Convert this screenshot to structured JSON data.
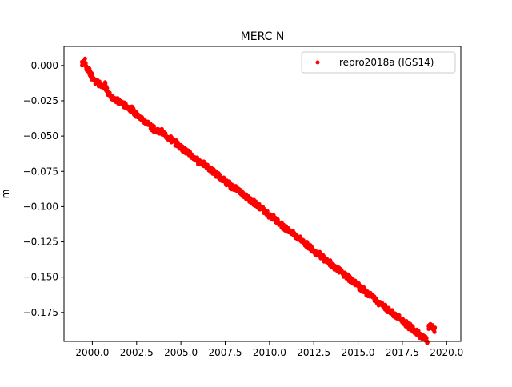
{
  "chart_data": {
    "type": "scatter",
    "title": "MERC N",
    "xlabel": "",
    "ylabel": "m",
    "xlim": [
      1998.4,
      2020.8
    ],
    "ylim": [
      -0.1955,
      0.0135
    ],
    "x_ticks": [
      2000.0,
      2002.5,
      2005.0,
      2007.5,
      2010.0,
      2012.5,
      2015.0,
      2017.5,
      2020.0
    ],
    "x_tick_labels": [
      "2000.0",
      "2002.5",
      "2005.0",
      "2007.5",
      "2010.0",
      "2012.5",
      "2015.0",
      "2017.5",
      "2020.0"
    ],
    "y_ticks": [
      0.0,
      -0.025,
      -0.05,
      -0.075,
      -0.1,
      -0.125,
      -0.15,
      -0.175
    ],
    "y_tick_labels": [
      "0.000",
      "−0.025",
      "−0.050",
      "−0.075",
      "−0.100",
      "−0.125",
      "−0.150",
      "−0.175"
    ],
    "grid": false,
    "legend_position": "top-right",
    "series": [
      {
        "name": "repro2018a (IGS14)",
        "color": "#ff0000",
        "marker": "circle",
        "points": [
          [
            1999.45,
            0.001
          ],
          [
            1999.5,
            0.002
          ],
          [
            1999.55,
            0.003
          ],
          [
            1999.6,
            0.001
          ],
          [
            1999.65,
            0.0
          ],
          [
            1999.7,
            -0.002
          ],
          [
            1999.75,
            -0.003
          ],
          [
            1999.8,
            -0.004
          ],
          [
            1999.85,
            -0.005
          ],
          [
            1999.9,
            -0.006
          ],
          [
            1999.95,
            -0.007
          ],
          [
            2000.0,
            -0.008
          ],
          [
            2000.1,
            -0.009
          ],
          [
            2000.2,
            -0.011
          ],
          [
            2000.3,
            -0.012
          ],
          [
            2000.4,
            -0.013
          ],
          [
            2000.5,
            -0.015
          ],
          [
            2000.6,
            -0.016
          ],
          [
            2000.7,
            -0.013
          ],
          [
            2000.8,
            -0.017
          ],
          [
            2000.9,
            -0.019
          ],
          [
            2001.0,
            -0.021
          ],
          [
            2001.1,
            -0.022
          ],
          [
            2001.2,
            -0.023
          ],
          [
            2001.3,
            -0.024
          ],
          [
            2001.4,
            -0.025
          ],
          [
            2001.5,
            -0.026
          ],
          [
            2001.6,
            -0.026
          ],
          [
            2001.7,
            -0.027
          ],
          [
            2001.8,
            -0.028
          ],
          [
            2001.9,
            -0.029
          ],
          [
            2002.0,
            -0.029
          ],
          [
            2002.1,
            -0.03
          ],
          [
            2002.2,
            -0.031
          ],
          [
            2002.3,
            -0.032
          ],
          [
            2002.4,
            -0.034
          ],
          [
            2002.5,
            -0.035
          ],
          [
            2002.6,
            -0.036
          ],
          [
            2002.7,
            -0.037
          ],
          [
            2002.8,
            -0.038
          ],
          [
            2002.9,
            -0.039
          ],
          [
            2003.0,
            -0.04
          ],
          [
            2003.1,
            -0.041
          ],
          [
            2003.2,
            -0.042
          ],
          [
            2003.3,
            -0.043
          ],
          [
            2003.4,
            -0.044
          ],
          [
            2003.5,
            -0.045
          ],
          [
            2003.6,
            -0.046
          ],
          [
            2003.7,
            -0.046
          ],
          [
            2003.8,
            -0.047
          ],
          [
            2003.9,
            -0.047
          ],
          [
            2004.0,
            -0.048
          ],
          [
            2004.1,
            -0.049
          ],
          [
            2004.2,
            -0.05
          ],
          [
            2004.3,
            -0.051
          ],
          [
            2004.4,
            -0.052
          ],
          [
            2004.5,
            -0.053
          ],
          [
            2004.6,
            -0.054
          ],
          [
            2004.7,
            -0.055
          ],
          [
            2004.8,
            -0.056
          ],
          [
            2004.9,
            -0.057
          ],
          [
            2005.0,
            -0.058
          ],
          [
            2005.1,
            -0.059
          ],
          [
            2005.2,
            -0.06
          ],
          [
            2005.3,
            -0.061
          ],
          [
            2005.4,
            -0.062
          ],
          [
            2005.5,
            -0.063
          ],
          [
            2005.6,
            -0.064
          ],
          [
            2005.7,
            -0.065
          ],
          [
            2005.8,
            -0.066
          ],
          [
            2005.9,
            -0.067
          ],
          [
            2006.0,
            -0.068
          ],
          [
            2006.1,
            -0.068
          ],
          [
            2006.2,
            -0.069
          ],
          [
            2006.3,
            -0.07
          ],
          [
            2006.4,
            -0.071
          ],
          [
            2006.5,
            -0.072
          ],
          [
            2006.6,
            -0.073
          ],
          [
            2006.7,
            -0.074
          ],
          [
            2006.8,
            -0.075
          ],
          [
            2006.9,
            -0.076
          ],
          [
            2007.0,
            -0.077
          ],
          [
            2007.1,
            -0.078
          ],
          [
            2007.2,
            -0.079
          ],
          [
            2007.3,
            -0.08
          ],
          [
            2007.4,
            -0.081
          ],
          [
            2007.5,
            -0.082
          ],
          [
            2007.6,
            -0.083
          ],
          [
            2007.7,
            -0.084
          ],
          [
            2007.8,
            -0.085
          ],
          [
            2007.9,
            -0.086
          ],
          [
            2008.0,
            -0.087
          ],
          [
            2008.1,
            -0.087
          ],
          [
            2008.2,
            -0.088
          ],
          [
            2008.3,
            -0.089
          ],
          [
            2008.4,
            -0.09
          ],
          [
            2008.5,
            -0.091
          ],
          [
            2008.6,
            -0.092
          ],
          [
            2008.7,
            -0.093
          ],
          [
            2008.8,
            -0.094
          ],
          [
            2008.9,
            -0.095
          ],
          [
            2009.0,
            -0.096
          ],
          [
            2009.1,
            -0.097
          ],
          [
            2009.2,
            -0.098
          ],
          [
            2009.3,
            -0.099
          ],
          [
            2009.4,
            -0.1
          ],
          [
            2009.5,
            -0.101
          ],
          [
            2009.6,
            -0.102
          ],
          [
            2009.7,
            -0.103
          ],
          [
            2009.8,
            -0.104
          ],
          [
            2009.9,
            -0.105
          ],
          [
            2010.0,
            -0.106
          ],
          [
            2010.1,
            -0.107
          ],
          [
            2010.2,
            -0.108
          ],
          [
            2010.3,
            -0.109
          ],
          [
            2010.4,
            -0.11
          ],
          [
            2010.5,
            -0.111
          ],
          [
            2010.6,
            -0.112
          ],
          [
            2010.7,
            -0.113
          ],
          [
            2010.8,
            -0.114
          ],
          [
            2010.9,
            -0.115
          ],
          [
            2011.0,
            -0.116
          ],
          [
            2011.1,
            -0.117
          ],
          [
            2011.2,
            -0.118
          ],
          [
            2011.3,
            -0.119
          ],
          [
            2011.4,
            -0.12
          ],
          [
            2011.5,
            -0.121
          ],
          [
            2011.6,
            -0.122
          ],
          [
            2011.7,
            -0.123
          ],
          [
            2011.8,
            -0.124
          ],
          [
            2011.9,
            -0.125
          ],
          [
            2012.0,
            -0.126
          ],
          [
            2012.1,
            -0.127
          ],
          [
            2012.2,
            -0.128
          ],
          [
            2012.3,
            -0.129
          ],
          [
            2012.4,
            -0.13
          ],
          [
            2012.5,
            -0.131
          ],
          [
            2012.6,
            -0.132
          ],
          [
            2012.7,
            -0.133
          ],
          [
            2012.8,
            -0.134
          ],
          [
            2012.9,
            -0.135
          ],
          [
            2013.0,
            -0.136
          ],
          [
            2013.1,
            -0.137
          ],
          [
            2013.2,
            -0.138
          ],
          [
            2013.3,
            -0.139
          ],
          [
            2013.4,
            -0.14
          ],
          [
            2013.5,
            -0.141
          ],
          [
            2013.6,
            -0.142
          ],
          [
            2013.7,
            -0.143
          ],
          [
            2013.8,
            -0.144
          ],
          [
            2013.9,
            -0.145
          ],
          [
            2014.0,
            -0.146
          ],
          [
            2014.1,
            -0.147
          ],
          [
            2014.2,
            -0.148
          ],
          [
            2014.3,
            -0.149
          ],
          [
            2014.4,
            -0.15
          ],
          [
            2014.5,
            -0.151
          ],
          [
            2014.6,
            -0.152
          ],
          [
            2014.7,
            -0.153
          ],
          [
            2014.8,
            -0.154
          ],
          [
            2014.9,
            -0.155
          ],
          [
            2015.0,
            -0.156
          ],
          [
            2015.1,
            -0.157
          ],
          [
            2015.2,
            -0.158
          ],
          [
            2015.3,
            -0.159
          ],
          [
            2015.4,
            -0.16
          ],
          [
            2015.5,
            -0.161
          ],
          [
            2015.6,
            -0.162
          ],
          [
            2015.7,
            -0.163
          ],
          [
            2015.8,
            -0.164
          ],
          [
            2015.9,
            -0.165
          ],
          [
            2016.0,
            -0.166
          ],
          [
            2016.1,
            -0.167
          ],
          [
            2016.2,
            -0.168
          ],
          [
            2016.3,
            -0.169
          ],
          [
            2016.4,
            -0.17
          ],
          [
            2016.5,
            -0.171
          ],
          [
            2016.6,
            -0.172
          ],
          [
            2016.7,
            -0.173
          ],
          [
            2016.8,
            -0.174
          ],
          [
            2016.9,
            -0.175
          ],
          [
            2017.0,
            -0.176
          ],
          [
            2017.1,
            -0.177
          ],
          [
            2017.2,
            -0.178
          ],
          [
            2017.3,
            -0.179
          ],
          [
            2017.4,
            -0.18
          ],
          [
            2017.5,
            -0.181
          ],
          [
            2017.6,
            -0.182
          ],
          [
            2017.7,
            -0.183
          ],
          [
            2017.8,
            -0.184
          ],
          [
            2017.9,
            -0.185
          ],
          [
            2018.0,
            -0.186
          ],
          [
            2018.1,
            -0.187
          ],
          [
            2018.2,
            -0.188
          ],
          [
            2018.3,
            -0.189
          ],
          [
            2018.4,
            -0.19
          ],
          [
            2018.5,
            -0.191
          ],
          [
            2018.6,
            -0.192
          ],
          [
            2018.7,
            -0.193
          ],
          [
            2018.8,
            -0.194
          ],
          [
            2018.9,
            -0.195
          ],
          [
            2019.0,
            -0.186
          ],
          [
            2019.1,
            -0.185
          ],
          [
            2019.2,
            -0.186
          ],
          [
            2019.3,
            -0.187
          ]
        ]
      }
    ]
  }
}
